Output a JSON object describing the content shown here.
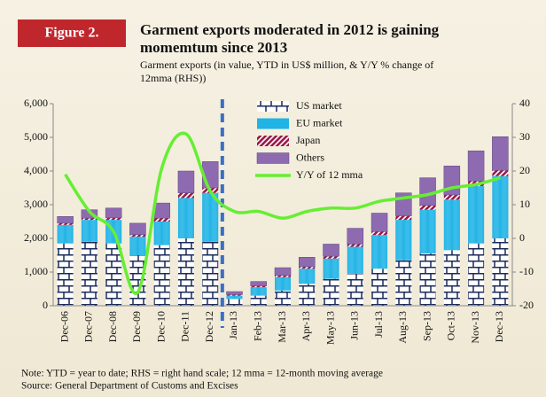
{
  "chart_data": {
    "type": "bar",
    "figure_label": "Figure 2.",
    "title_lines": [
      "Garment exports moderated in 2012 is gaining",
      "momemtum since 2013"
    ],
    "subtitle_lines": [
      "Garment exports (in value,  YTD in US$ million, & Y/Y % change of",
      "12mma (RHS))"
    ],
    "categories": [
      "Dec-06",
      "Dec-07",
      "Dec-08",
      "Dec-09",
      "Dec-10",
      "Dec-11",
      "Dec-12",
      "Jan-13",
      "Feb-13",
      "Mar-13",
      "Apr-13",
      "May-13",
      "Jun-13",
      "Jul-13",
      "Aug-13",
      "Sep-13",
      "Oct-13",
      "Nov-13",
      "Dec-13"
    ],
    "series": [
      {
        "name": "US market",
        "color": "#ffffff",
        "values": [
          1850,
          1900,
          1850,
          1500,
          1800,
          2000,
          1900,
          200,
          300,
          450,
          650,
          800,
          950,
          1100,
          1350,
          1550,
          1650,
          1850,
          2000
        ]
      },
      {
        "name": "EU market",
        "color": "#1fb3e6",
        "values": [
          550,
          650,
          700,
          550,
          700,
          1200,
          1450,
          100,
          250,
          400,
          450,
          600,
          800,
          1000,
          1200,
          1300,
          1500,
          1700,
          1850
        ]
      },
      {
        "name": "Japan",
        "color": "#9b1b4a",
        "values": [
          50,
          50,
          60,
          60,
          100,
          150,
          150,
          30,
          40,
          50,
          60,
          70,
          80,
          100,
          120,
          130,
          140,
          150,
          170
        ]
      },
      {
        "name": "Others",
        "color": "#8e6bb0",
        "values": [
          200,
          250,
          290,
          340,
          450,
          650,
          780,
          90,
          130,
          230,
          280,
          360,
          470,
          550,
          680,
          820,
          860,
          900,
          1000
        ]
      },
      {
        "name": "Y/Y of 12 mma",
        "color": "#66ee33",
        "type": "line",
        "axis": "y2",
        "values": [
          19,
          8,
          2,
          -16,
          21,
          31,
          14,
          8,
          8,
          6,
          8,
          9,
          9,
          11,
          12,
          13,
          15,
          16,
          18
        ]
      }
    ],
    "ylim": [
      0,
      6000
    ],
    "yticks": [
      0,
      {
        "value": 1000,
        "label": "1,000"
      },
      {
        "value": 2000,
        "label": "2,000"
      },
      {
        "value": 3000,
        "label": "3,000"
      },
      {
        "value": 4000,
        "label": "4,000"
      },
      {
        "value": 5000,
        "label": "5,000"
      },
      {
        "value": 6000,
        "label": "6,000"
      }
    ],
    "y2lim": [
      -20,
      40
    ],
    "y2ticks": [
      -20,
      -10,
      0,
      10,
      20,
      30,
      40
    ],
    "stacked": true,
    "notes": [
      "Note: YTD = year to date; RHS = right hand scale; 12 mma = 12-month moving average",
      "Source: General Department of Customs and Excises"
    ]
  }
}
